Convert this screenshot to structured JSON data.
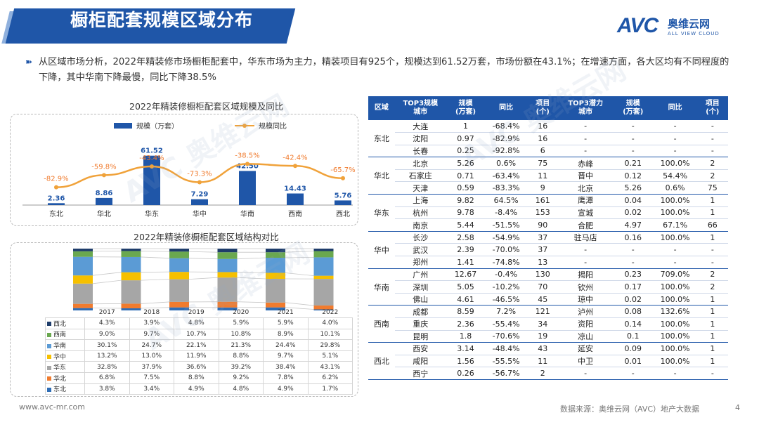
{
  "header": {
    "title": "橱柜配套规模区域分布"
  },
  "logo": {
    "main": "AVC",
    "cn": "奥维云网",
    "en": "ALL VIEW CLOUD"
  },
  "intro": "从区域市场分析，2022年精装修市场橱柜配套中，华东市场为主力，精装项目有925个，规模达到61.52万套，市场份额在43.1%；在增速方面，各大区均有不同程度的下降，其中华南下降最慢，同比下降38.5%",
  "chart_data": [
    {
      "type": "bar",
      "title": "2022年精装修橱柜配套区域规模及同比",
      "categories": [
        "东北",
        "华北",
        "华东",
        "华中",
        "华南",
        "西南",
        "西北"
      ],
      "series": [
        {
          "name": "规模（万套）",
          "values": [
            2.36,
            8.86,
            61.52,
            7.29,
            42.5,
            14.43,
            5.76
          ],
          "labels": [
            "2.36",
            "8.86",
            "61.52",
            "7.29",
            "42.50",
            "14.43",
            "5.76"
          ]
        },
        {
          "name": "规模同比",
          "values": [
            -82.9,
            -59.8,
            -43.4,
            -73.3,
            -38.5,
            -42.4,
            -65.7
          ],
          "labels": [
            "-82.9%",
            "-59.8%",
            "-43.4%",
            "-73.3%",
            "-38.5%",
            "-42.4%",
            "-65.7%"
          ],
          "type": "line"
        }
      ],
      "ylim": [
        0,
        70
      ],
      "legend": "top"
    },
    {
      "type": "bar",
      "stacked": true,
      "title": "2022年精装修橱柜配套区域结构对比",
      "categories": [
        "2017",
        "2018",
        "2019",
        "2020",
        "2021",
        "2022"
      ],
      "series": [
        {
          "name": "东北",
          "values": [
            3.8,
            3.4,
            4.9,
            4.8,
            4.9,
            1.7
          ],
          "labels": [
            "3.8%",
            "3.4%",
            "4.9%",
            "4.8%",
            "4.9%",
            "1.7%"
          ],
          "color": "#2f6db5"
        },
        {
          "name": "华北",
          "values": [
            6.8,
            7.5,
            8.8,
            9.2,
            7.8,
            6.2
          ],
          "labels": [
            "6.8%",
            "7.5%",
            "8.8%",
            "9.2%",
            "7.8%",
            "6.2%"
          ],
          "color": "#f07b2e"
        },
        {
          "name": "华东",
          "values": [
            32.8,
            37.9,
            36.6,
            39.2,
            38.4,
            43.1
          ],
          "labels": [
            "32.8%",
            "37.9%",
            "36.6%",
            "39.2%",
            "38.4%",
            "43.1%"
          ],
          "color": "#a6a6a6"
        },
        {
          "name": "华中",
          "values": [
            13.2,
            13.0,
            11.9,
            8.8,
            9.7,
            5.1
          ],
          "labels": [
            "13.2%",
            "13.0%",
            "11.9%",
            "8.8%",
            "9.7%",
            "5.1%"
          ],
          "color": "#f6c000"
        },
        {
          "name": "华南",
          "values": [
            30.1,
            24.7,
            22.1,
            21.3,
            24.4,
            29.8
          ],
          "labels": [
            "30.1%",
            "24.7%",
            "22.1%",
            "21.3%",
            "24.4%",
            "29.8%"
          ],
          "color": "#5b9bd5"
        },
        {
          "name": "西南",
          "values": [
            9.0,
            9.7,
            10.7,
            10.8,
            8.9,
            10.1
          ],
          "labels": [
            "9.0%",
            "9.7%",
            "10.7%",
            "10.8%",
            "8.9%",
            "10.1%"
          ],
          "color": "#6aa84f"
        },
        {
          "name": "西北",
          "values": [
            4.3,
            3.9,
            4.8,
            5.9,
            5.9,
            4.0
          ],
          "labels": [
            "4.3%",
            "3.9%",
            "4.8%",
            "5.9%",
            "5.9%",
            "4.0%"
          ],
          "color": "#1f3d6b"
        }
      ],
      "ylim": [
        0,
        100
      ]
    }
  ],
  "table": {
    "headers": [
      "区域",
      "TOP3规模\n城市",
      "规模\n(万套)",
      "同比",
      "项目\n(个)",
      "TOP3潜力\n城市",
      "规模\n(万套)",
      "同比",
      "项目\n(个)"
    ],
    "groups": [
      {
        "region": "东北",
        "rows": [
          [
            "大连",
            "1",
            "-68.4%",
            "16",
            "-",
            "-",
            "-",
            "-"
          ],
          [
            "沈阳",
            "0.97",
            "-82.9%",
            "16",
            "-",
            "-",
            "-",
            "-"
          ],
          [
            "长春",
            "0.25",
            "-92.8%",
            "6",
            "-",
            "-",
            "-",
            "-"
          ]
        ]
      },
      {
        "region": "华北",
        "rows": [
          [
            "北京",
            "5.26",
            "0.6%",
            "75",
            "赤峰",
            "0.21",
            "100.0%",
            "2"
          ],
          [
            "石家庄",
            "0.71",
            "-63.4%",
            "11",
            "晋中",
            "0.12",
            "54.4%",
            "2"
          ],
          [
            "天津",
            "0.59",
            "-83.3%",
            "9",
            "北京",
            "5.26",
            "0.6%",
            "75"
          ]
        ]
      },
      {
        "region": "华东",
        "rows": [
          [
            "上海",
            "9.82",
            "64.5%",
            "161",
            "鹰潭",
            "0.04",
            "100.0%",
            "1"
          ],
          [
            "杭州",
            "9.78",
            "-8.4%",
            "153",
            "宣城",
            "0.02",
            "100.0%",
            "1"
          ],
          [
            "南京",
            "5.44",
            "-51.5%",
            "90",
            "合肥",
            "4.97",
            "67.1%",
            "66"
          ]
        ]
      },
      {
        "region": "华中",
        "rows": [
          [
            "长沙",
            "2.58",
            "-54.9%",
            "37",
            "驻马店",
            "0.16",
            "100.0%",
            "1"
          ],
          [
            "武汉",
            "2.39",
            "-70.0%",
            "37",
            "-",
            "-",
            "-",
            "-"
          ],
          [
            "郑州",
            "1.41",
            "-74.8%",
            "13",
            "-",
            "-",
            "-",
            "-"
          ]
        ]
      },
      {
        "region": "华南",
        "rows": [
          [
            "广州",
            "12.67",
            "-0.4%",
            "130",
            "揭阳",
            "0.23",
            "709.0%",
            "2"
          ],
          [
            "深圳",
            "5.05",
            "-10.2%",
            "70",
            "钦州",
            "0.17",
            "100.0%",
            "2"
          ],
          [
            "佛山",
            "4.61",
            "-46.5%",
            "45",
            "琼中",
            "0.02",
            "100.0%",
            "1"
          ]
        ]
      },
      {
        "region": "西南",
        "rows": [
          [
            "成都",
            "8.59",
            "7.2%",
            "121",
            "泸州",
            "0.08",
            "132.6%",
            "1"
          ],
          [
            "重庆",
            "2.36",
            "-55.4%",
            "34",
            "资阳",
            "0.14",
            "100.0%",
            "1"
          ],
          [
            "昆明",
            "1.8",
            "-70.6%",
            "19",
            "凉山",
            "0.1",
            "100.0%",
            "1"
          ]
        ]
      },
      {
        "region": "西北",
        "rows": [
          [
            "西安",
            "3.14",
            "-48.4%",
            "43",
            "延安",
            "0.09",
            "100.0%",
            "1"
          ],
          [
            "咸阳",
            "1.56",
            "-55.5%",
            "11",
            "中卫",
            "0.01",
            "100.0%",
            "1"
          ],
          [
            "西宁",
            "0.26",
            "-56.7%",
            "2",
            "-",
            "-",
            "-",
            "-"
          ]
        ]
      }
    ]
  },
  "footer": {
    "site": "www.avc-mr.com",
    "source": "数据来源：奥维云网（AVC）地产大数据",
    "page": "4"
  },
  "watermark": "奥维云网"
}
